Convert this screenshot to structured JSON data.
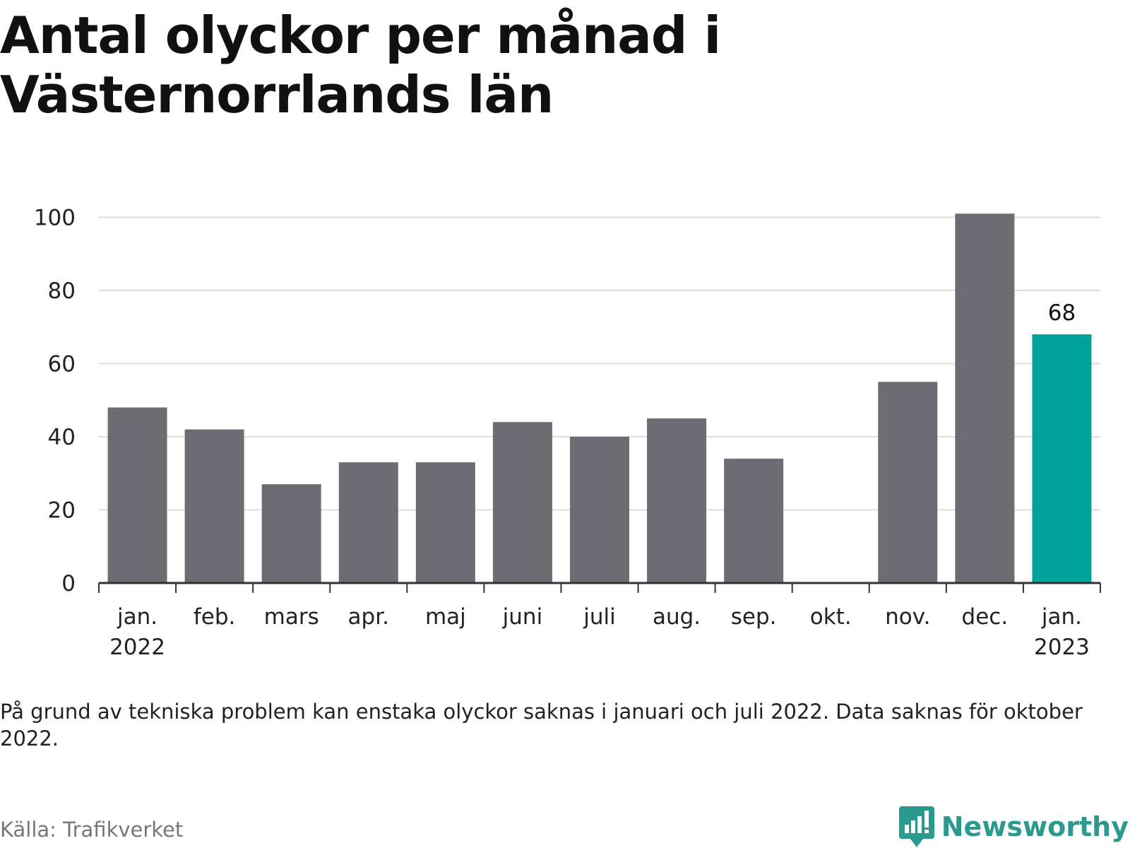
{
  "title": "Antal olyckor per månad i Västernorrlands län",
  "note": "På grund av tekniska problem kan enstaka olyckor saknas i januari och juli 2022. Data saknas för oktober 2022.",
  "source": "Källa: Trafikverket",
  "brand": {
    "name": "Newsworthy",
    "icon": "newsworthy-logo-icon"
  },
  "colors": {
    "bar": "#6d6c72",
    "highlight": "#00a39b",
    "grid": "#dddddd",
    "axis": "#333333",
    "text": "#222222"
  },
  "chart_data": {
    "type": "bar",
    "categories": [
      [
        "jan.",
        "2022"
      ],
      [
        "feb."
      ],
      [
        "mars"
      ],
      [
        "apr."
      ],
      [
        "maj"
      ],
      [
        "juni"
      ],
      [
        "juli"
      ],
      [
        "aug."
      ],
      [
        "sep."
      ],
      [
        "okt."
      ],
      [
        "nov."
      ],
      [
        "dec."
      ],
      [
        "jan.",
        "2023"
      ]
    ],
    "values": [
      48,
      42,
      27,
      33,
      33,
      44,
      40,
      45,
      34,
      null,
      55,
      101,
      68
    ],
    "highlight_index": 12,
    "data_labels": [
      {
        "index": 12,
        "text": "68"
      }
    ],
    "y_ticks": [
      0,
      20,
      40,
      60,
      80,
      100
    ],
    "ylim": [
      0,
      101
    ],
    "grid": true
  }
}
